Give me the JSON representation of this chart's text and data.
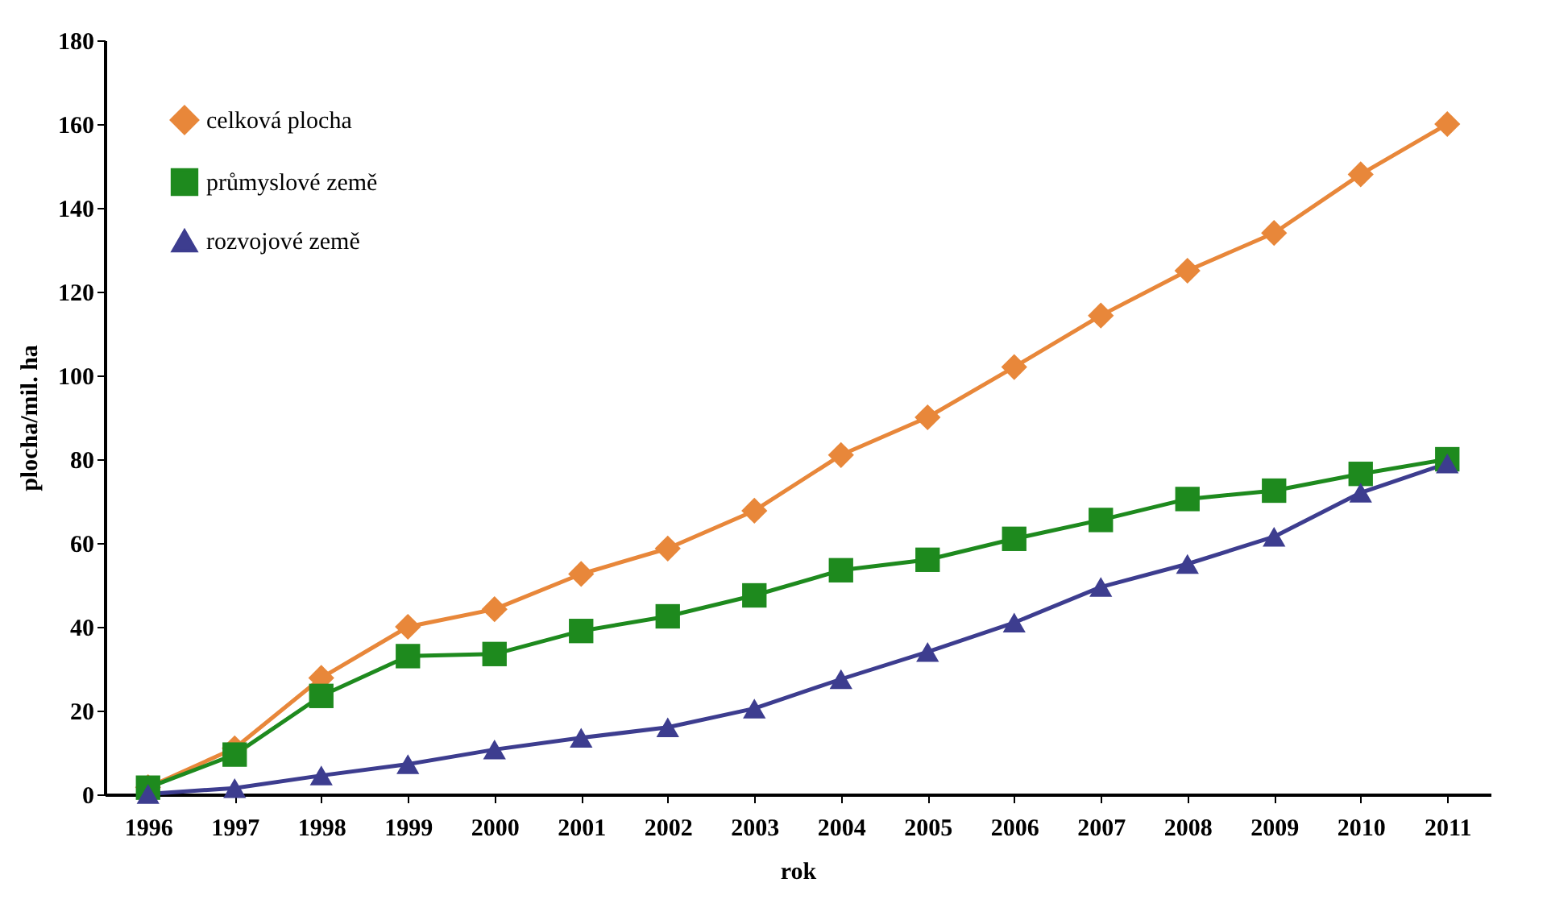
{
  "chart_data": {
    "type": "line",
    "xlabel": "rok",
    "ylabel": "plocha/mil. ha",
    "categories": [
      "1996",
      "1997",
      "1998",
      "1999",
      "2000",
      "2001",
      "2002",
      "2003",
      "2004",
      "2005",
      "2006",
      "2007",
      "2008",
      "2009",
      "2010",
      "2011"
    ],
    "series": [
      {
        "name": "celková plocha",
        "color": "#e8873a",
        "marker": "diamond",
        "values": [
          1.7,
          11,
          27.8,
          40,
          44.2,
          52.6,
          58.7,
          67.7,
          81,
          90,
          102,
          114.3,
          125,
          134,
          148,
          160
        ]
      },
      {
        "name": "průmyslové země",
        "color": "#1e8a1e",
        "marker": "square",
        "values": [
          1.6,
          9.5,
          23.5,
          33,
          33.5,
          39,
          42.5,
          47.5,
          53.5,
          56,
          61,
          65.5,
          70.5,
          72.5,
          76.5,
          80
        ]
      },
      {
        "name": "rozvojové země",
        "color": "#3d3d8f",
        "marker": "triangle",
        "values": [
          0.1,
          1.5,
          4.5,
          7.2,
          10.7,
          13.5,
          16,
          20.5,
          27.5,
          34,
          41,
          49.5,
          55,
          61.5,
          72,
          79
        ]
      }
    ],
    "ylim": [
      0,
      180
    ],
    "yticks": [
      0,
      20,
      40,
      60,
      80,
      100,
      120,
      140,
      160,
      180
    ],
    "grid": false,
    "legend": "top left",
    "line_style": "solid"
  }
}
